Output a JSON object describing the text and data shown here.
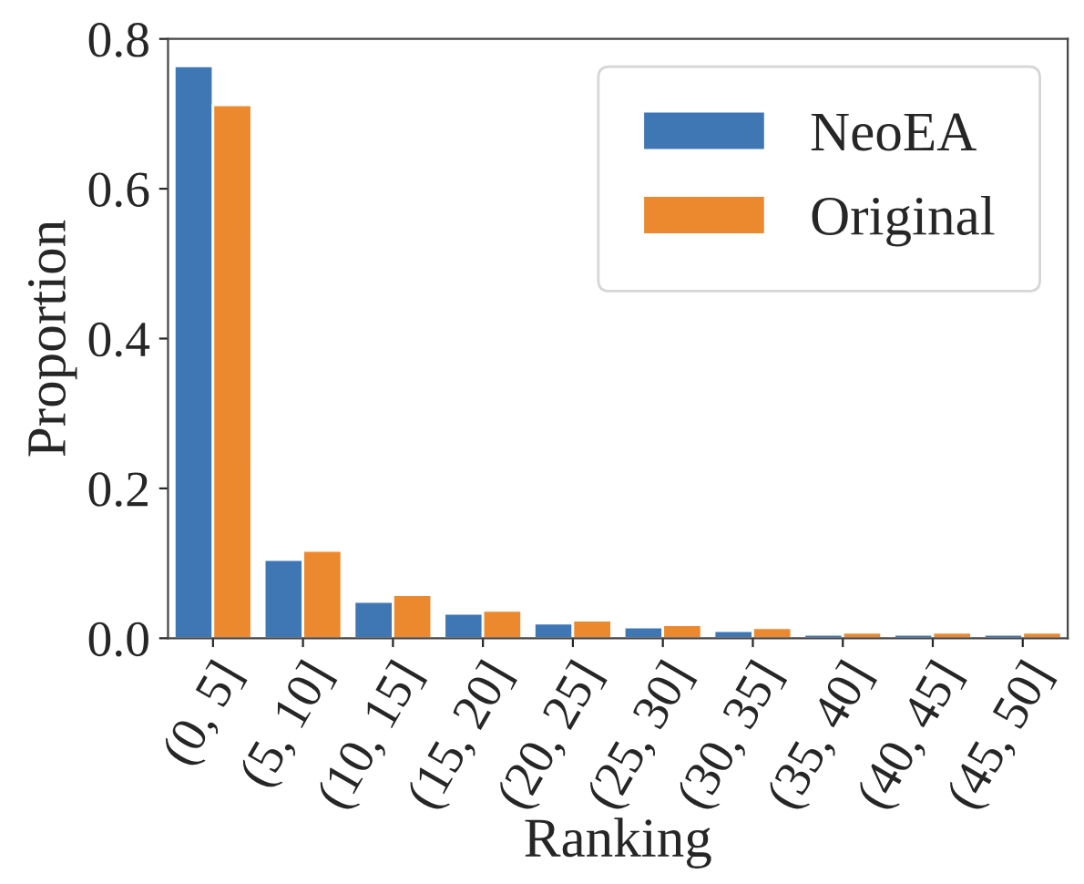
{
  "chart_data": {
    "type": "bar",
    "xlabel": "Ranking",
    "ylabel": "Proportion",
    "categories": [
      "(0, 5]",
      "(5, 10]",
      "(10, 15]",
      "(15, 20]",
      "(20, 25]",
      "(25, 30]",
      "(30, 35]",
      "(35, 40]",
      "(40, 45]",
      "(45, 50]"
    ],
    "series": [
      {
        "name": "NeoEA",
        "color": "#3f76b4",
        "values": [
          0.764,
          0.105,
          0.049,
          0.033,
          0.02,
          0.015,
          0.01,
          0.005,
          0.005,
          0.005
        ]
      },
      {
        "name": "Original",
        "color": "#ec892f",
        "values": [
          0.712,
          0.117,
          0.058,
          0.037,
          0.024,
          0.018,
          0.014,
          0.008,
          0.008,
          0.008
        ]
      }
    ],
    "ylim": [
      0,
      0.8
    ],
    "yticks": [
      {
        "value": 0,
        "label": "0.0"
      },
      {
        "value": 0.2,
        "label": "0.2"
      },
      {
        "value": 0.4,
        "label": "0.4"
      },
      {
        "value": 0.6,
        "label": "0.6"
      },
      {
        "value": 0.8,
        "label": "0.8"
      }
    ],
    "grid": false,
    "legend": "top right"
  }
}
